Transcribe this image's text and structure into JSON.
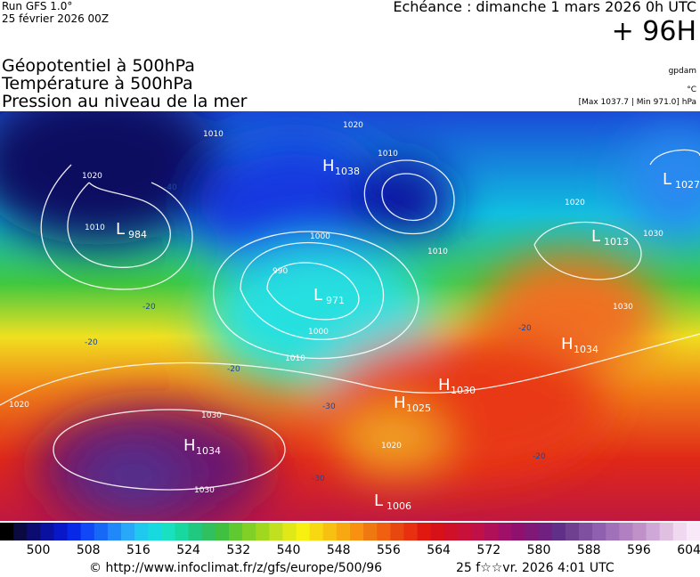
{
  "header": {
    "run": "Run GFS 1.0°",
    "run_date": "25 février 2026 00Z",
    "echeance": "Echéance : dimanche 1 mars 2026 0h UTC",
    "hour": "+ 96H",
    "fields": [
      "Géopotentiel à 500hPa",
      "Température à 500hPa",
      "Pression au niveau de la mer"
    ],
    "units": [
      "gpdam",
      "°C",
      "[Max 1037.7 | Min 971.0] hPa"
    ]
  },
  "map": {
    "centers": [
      {
        "letter": "L",
        "value": "984"
      },
      {
        "letter": "H",
        "value": "1038"
      },
      {
        "letter": "L",
        "value": "1027"
      },
      {
        "letter": "L",
        "value": "1013"
      },
      {
        "letter": "L",
        "value": "971"
      },
      {
        "letter": "H",
        "value": "1034"
      },
      {
        "letter": "H",
        "value": "1025"
      },
      {
        "letter": "H",
        "value": "1030"
      },
      {
        "letter": "H",
        "value": "1034"
      },
      {
        "letter": "L",
        "value": "1006"
      }
    ],
    "isobar_labels": [
      "1010",
      "1020",
      "1010",
      "1020",
      "1010",
      "1000",
      "990",
      "1000",
      "1010",
      "1020",
      "1030",
      "1030",
      "1020",
      "1030",
      "1030",
      "1010",
      "1020"
    ],
    "temp_labels": [
      "-40",
      "-20",
      "-20",
      "-30",
      "-20",
      "-30",
      "-20",
      "-20"
    ]
  },
  "colorbar": {
    "labels": [
      "500",
      "508",
      "516",
      "524",
      "532",
      "540",
      "548",
      "556",
      "564",
      "572",
      "580",
      "588",
      "596",
      "604"
    ]
  },
  "footer": {
    "source": "© http://www.infoclimat.fr/z/gfs/europe/500/96",
    "generated": "25 f☆☆vr. 2026  4:01 UTC"
  }
}
